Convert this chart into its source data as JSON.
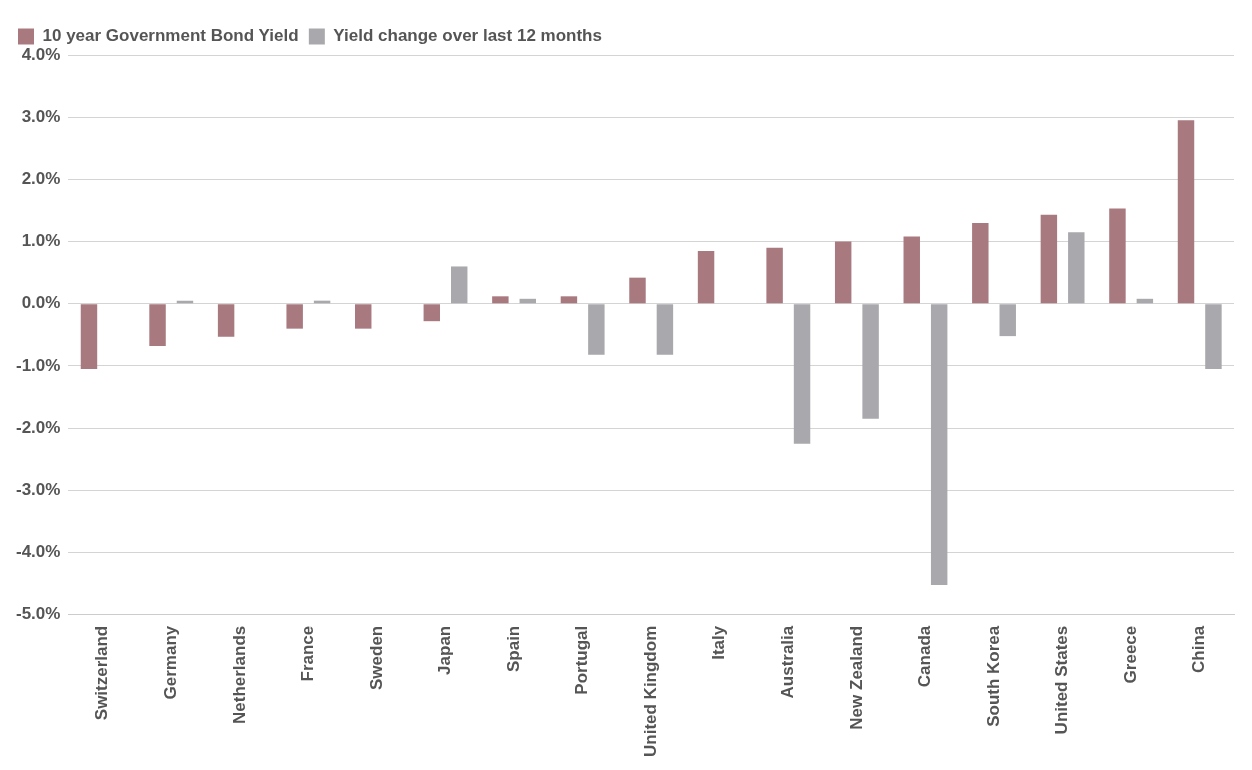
{
  "chart_data": {
    "type": "bar",
    "categories": [
      "Switzerland",
      "Germany",
      "Netherlands",
      "France",
      "Sweden",
      "Japan",
      "Spain",
      "Portugal",
      "United Kingdom",
      "Italy",
      "Australia",
      "New Zealand",
      "Canada",
      "South Korea",
      "United States",
      "Greece",
      "China"
    ],
    "series": [
      {
        "name": "10 year Government Bond Yield",
        "color": "#a8797f",
        "values": [
          -1.05,
          -0.68,
          -0.53,
          -0.4,
          -0.4,
          -0.28,
          0.12,
          0.12,
          0.42,
          0.85,
          0.9,
          1.0,
          1.08,
          1.3,
          1.43,
          1.53,
          2.95
        ]
      },
      {
        "name": "Yield change over last 12 months",
        "color": "#a9a9ad",
        "values": [
          null,
          0.05,
          null,
          0.05,
          null,
          0.6,
          0.08,
          -0.82,
          -0.82,
          null,
          -2.25,
          -1.85,
          -4.52,
          -0.52,
          1.15,
          0.08,
          -1.05
        ]
      }
    ],
    "ylim": [
      -5,
      4
    ],
    "yticks": [
      {
        "value": -5,
        "label": "-5.0%"
      },
      {
        "value": -4,
        "label": "-4.0%"
      },
      {
        "value": -3,
        "label": "-3.0%"
      },
      {
        "value": -2,
        "label": "-2.0%"
      },
      {
        "value": -1,
        "label": "-1.0%"
      },
      {
        "value": 0,
        "label": "0.0%"
      },
      {
        "value": 1,
        "label": "1.0%"
      },
      {
        "value": 2,
        "label": "2.0%"
      },
      {
        "value": 3,
        "label": "3.0%"
      },
      {
        "value": 4,
        "label": "4.0%"
      }
    ],
    "grid": "y",
    "legend": "top left"
  }
}
